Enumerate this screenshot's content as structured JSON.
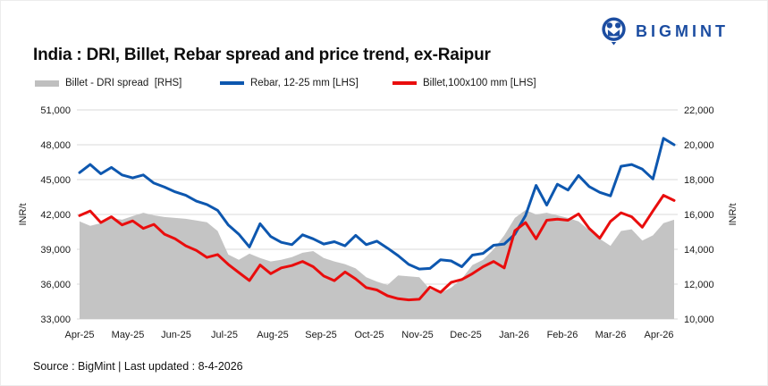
{
  "logo": {
    "text": "BIGMINT",
    "color": "#1C4DA1"
  },
  "title": "India : DRI, Billet, Rebar spread and price trend, ex-Raipur",
  "legend": [
    {
      "label": "Billet - DRI spread  [RHS]",
      "color": "#BFBFBF",
      "type": "area"
    },
    {
      "label": "Rebar, 12-25 mm [LHS]",
      "color": "#0D57AF",
      "type": "line"
    },
    {
      "label": "Billet,100x100 mm [LHS]",
      "color": "#E90D0D",
      "type": "line"
    }
  ],
  "footer": "Source : BigMint | Last updated : 8-4-2026",
  "chart_data": {
    "type": "line",
    "title": "India : DRI, Billet, Rebar spread and price trend, ex-Raipur",
    "x_description": "57 approximately weekly samples, Apr-2025 through mid-Apr-2026",
    "x_tick_labels": [
      "Apr-25",
      "May-25",
      "Jun-25",
      "Jul-25",
      "Aug-25",
      "Sep-25",
      "Oct-25",
      "Nov-25",
      "Dec-25",
      "Jan-26",
      "Feb-26",
      "Mar-26",
      "Apr-26"
    ],
    "grid": true,
    "legend_position": "top",
    "left_axis": {
      "label": "INR/t",
      "min": 33000,
      "max": 51000,
      "step": 3000,
      "ticks": [
        51000,
        48000,
        45000,
        42000,
        39000,
        36000,
        33000
      ]
    },
    "right_axis": {
      "label": "INR/t",
      "min": 10000,
      "max": 22000,
      "step": 2000,
      "ticks": [
        22000,
        20000,
        18000,
        16000,
        14000,
        12000,
        10000
      ]
    },
    "series": [
      {
        "name": "Billet - DRI spread",
        "axis": "right",
        "type": "area",
        "color": "#C4C4C4",
        "values": [
          15600,
          15350,
          15500,
          15800,
          15700,
          15900,
          16100,
          15950,
          15850,
          15800,
          15750,
          15650,
          15550,
          15050,
          13700,
          13400,
          13750,
          13500,
          13300,
          13400,
          13550,
          13800,
          13900,
          13500,
          13300,
          13150,
          12900,
          12400,
          12150,
          11950,
          12500,
          12450,
          12400,
          11700,
          11500,
          11800,
          12300,
          13100,
          13400,
          14000,
          14800,
          15800,
          16250,
          16000,
          16100,
          15950,
          15800,
          15600,
          15100,
          14600,
          14200,
          15050,
          15150,
          14500,
          14800,
          15500,
          15700
        ]
      },
      {
        "name": "Rebar, 12-25 mm",
        "axis": "left",
        "type": "line",
        "color": "#0D57AF",
        "values": [
          45600,
          46300,
          45500,
          46050,
          45400,
          45150,
          45400,
          44700,
          44350,
          43950,
          43650,
          43150,
          42850,
          42350,
          41100,
          40300,
          39200,
          41200,
          40100,
          39600,
          39400,
          40250,
          39900,
          39450,
          39650,
          39300,
          40200,
          39400,
          39700,
          39100,
          38450,
          37700,
          37300,
          37350,
          38100,
          38000,
          37500,
          38500,
          38650,
          39350,
          39450,
          40300,
          41900,
          44500,
          42800,
          44600,
          44100,
          45350,
          44400,
          43900,
          43600,
          46150,
          46300,
          45900,
          45050,
          48550,
          48000
        ]
      },
      {
        "name": "Billet,100x100 mm",
        "axis": "left",
        "type": "line",
        "color": "#E90D0D",
        "values": [
          41900,
          42300,
          41300,
          41800,
          41100,
          41450,
          40800,
          41150,
          40300,
          39900,
          39300,
          38900,
          38300,
          38550,
          37700,
          37000,
          36310,
          37650,
          36900,
          37400,
          37600,
          37950,
          37500,
          36700,
          36300,
          37050,
          36450,
          35700,
          35500,
          35000,
          34750,
          34650,
          34700,
          35750,
          35300,
          36150,
          36400,
          36900,
          37500,
          37950,
          37400,
          40600,
          41300,
          39900,
          41500,
          41600,
          41500,
          42050,
          40800,
          39950,
          41400,
          42150,
          41800,
          40900,
          42300,
          43650,
          43200
        ]
      }
    ],
    "colors": {
      "grid": "#DADADA",
      "axis_text": "#1a1a1a"
    }
  }
}
